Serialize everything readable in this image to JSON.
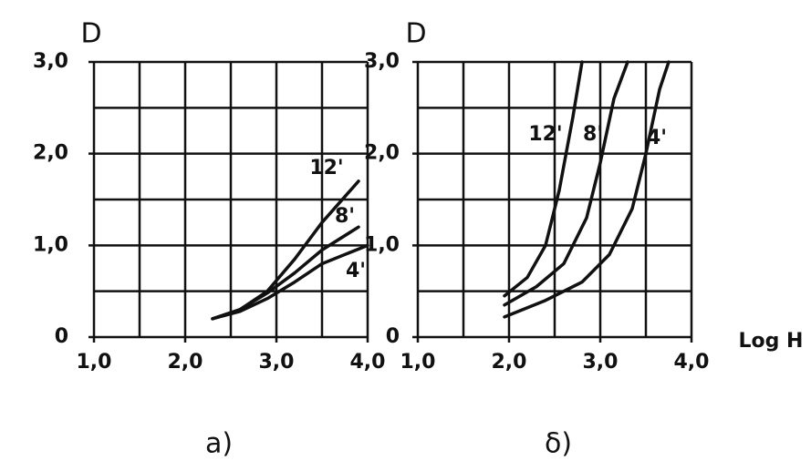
{
  "chart_data": [
    {
      "type": "line",
      "ylabel": "D",
      "caption": "a)",
      "xlim": [
        1.0,
        4.0
      ],
      "ylim": [
        0,
        3.0
      ],
      "xticks": [
        {
          "value": 1.0,
          "label": "1,0"
        },
        {
          "value": 2.0,
          "label": "2,0"
        },
        {
          "value": 3.0,
          "label": "3,0"
        },
        {
          "value": 4.0,
          "label": "4,0"
        }
      ],
      "yticks": [
        0,
        {
          "value": 1.0,
          "label": "1,0"
        },
        {
          "value": 2.0,
          "label": "2,0"
        },
        {
          "value": 3.0,
          "label": "3,0"
        }
      ],
      "xminor": [
        1.5,
        2.5,
        3.5
      ],
      "yminor": [
        0.5,
        1.5,
        2.5
      ],
      "grid": true,
      "series": [
        {
          "name": "12'",
          "color": "#111111",
          "x": [
            2.3,
            2.6,
            2.9,
            3.2,
            3.5,
            3.9
          ],
          "values": [
            0.2,
            0.3,
            0.5,
            0.85,
            1.25,
            1.7
          ]
        },
        {
          "name": "8'",
          "color": "#111111",
          "x": [
            2.3,
            2.6,
            2.9,
            3.2,
            3.5,
            3.9
          ],
          "values": [
            0.2,
            0.3,
            0.48,
            0.7,
            0.95,
            1.2
          ]
        },
        {
          "name": "4'",
          "color": "#111111",
          "x": [
            2.3,
            2.6,
            2.9,
            3.2,
            3.5,
            4.0
          ],
          "values": [
            0.2,
            0.28,
            0.42,
            0.6,
            0.8,
            1.0
          ]
        }
      ]
    },
    {
      "type": "line",
      "ylabel": "D",
      "xlabel": "Log H",
      "caption": "δ)",
      "xlim": [
        1.0,
        4.0
      ],
      "ylim": [
        0,
        3.0
      ],
      "xticks": [
        {
          "value": 1.0,
          "label": "1,0"
        },
        {
          "value": 2.0,
          "label": "2,0"
        },
        {
          "value": 3.0,
          "label": "3,0"
        },
        {
          "value": 4.0,
          "label": "4,0"
        }
      ],
      "yticks": [
        0,
        {
          "value": 1.0,
          "label": "1,0"
        },
        {
          "value": 2.0,
          "label": "2,0"
        },
        {
          "value": 3.0,
          "label": "3,0"
        }
      ],
      "xminor": [
        1.5,
        2.5,
        3.5
      ],
      "yminor": [
        0.5,
        1.5,
        2.5
      ],
      "grid": true,
      "series": [
        {
          "name": "12'",
          "color": "#111111",
          "x": [
            1.95,
            2.2,
            2.4,
            2.55,
            2.7,
            2.8
          ],
          "values": [
            0.45,
            0.65,
            1.0,
            1.6,
            2.4,
            3.0
          ]
        },
        {
          "name": "8'",
          "color": "#111111",
          "x": [
            1.95,
            2.3,
            2.6,
            2.85,
            3.0,
            3.15,
            3.3
          ],
          "values": [
            0.35,
            0.55,
            0.8,
            1.3,
            1.9,
            2.6,
            3.0
          ]
        },
        {
          "name": "4'",
          "color": "#111111",
          "x": [
            1.95,
            2.4,
            2.8,
            3.1,
            3.35,
            3.5,
            3.65,
            3.75
          ],
          "values": [
            0.22,
            0.4,
            0.6,
            0.9,
            1.4,
            2.0,
            2.7,
            3.0
          ]
        }
      ]
    }
  ]
}
